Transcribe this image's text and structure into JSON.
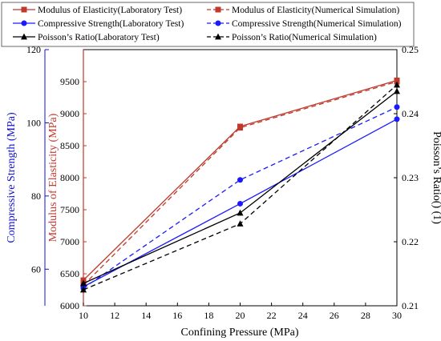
{
  "chart_data": {
    "type": "line",
    "x": [
      10,
      20,
      30
    ],
    "xlabel": "Confining Pressure (MPa)",
    "xlim": [
      10,
      30
    ],
    "xticks": [
      10,
      12,
      14,
      16,
      18,
      20,
      22,
      24,
      26,
      28,
      30
    ],
    "grid": false,
    "legend_position": "top",
    "axes": {
      "modulus": {
        "label": "Modulus of Elasticity (MPa)",
        "ylim": [
          6000,
          10000
        ],
        "ticks": [
          6000,
          6500,
          7000,
          7500,
          8000,
          8500,
          9000,
          9500
        ],
        "color": "#c0392b",
        "tick_color": "#b03a2e"
      },
      "compressive": {
        "label": "Compressive Strength (MPa)",
        "ylim": [
          50,
          120
        ],
        "ticks": [
          60,
          80,
          100,
          120
        ],
        "color": "#1010cc",
        "tick_color": "#1010cc"
      },
      "poisson": {
        "label": "Poisson’s Ratio() (1)",
        "ylim": [
          0.21,
          0.25
        ],
        "ticks": [
          0.21,
          0.22,
          0.23,
          0.24,
          0.25
        ],
        "color": "#000000",
        "tick_color": "#000000"
      }
    },
    "series": [
      {
        "name": "Modulus of Elasticity(Laboratory Test)",
        "axis": "modulus",
        "values": [
          6400,
          8800,
          9520
        ],
        "color": "#c0392b",
        "dash": false,
        "marker": "square"
      },
      {
        "name": "Modulus of Elasticity(Numerical Simulation)",
        "axis": "modulus",
        "values": [
          6320,
          8780,
          9500
        ],
        "color": "#c0392b",
        "dash": true,
        "marker": "square"
      },
      {
        "name": "Compressive Strength(Laboratory Test)",
        "axis": "compressive",
        "values": [
          55.2,
          77.9,
          101.0
        ],
        "color": "#1a1aff",
        "dash": false,
        "marker": "circle"
      },
      {
        "name": "Compressive Strength(Numerical Simulation)",
        "axis": "compressive",
        "values": [
          54.8,
          84.4,
          104.3
        ],
        "color": "#1a1aff",
        "dash": true,
        "marker": "circle"
      },
      {
        "name": "Poisson’s Ratio(Laboratory Test)",
        "axis": "poisson",
        "values": [
          0.2135,
          0.2245,
          0.2435
        ],
        "color": "#000000",
        "dash": false,
        "marker": "triangle"
      },
      {
        "name": "Poisson’s Ratio(Numerical Simulation)",
        "axis": "poisson",
        "values": [
          0.2125,
          0.2228,
          0.2445
        ],
        "color": "#000000",
        "dash": true,
        "marker": "triangle"
      }
    ]
  }
}
